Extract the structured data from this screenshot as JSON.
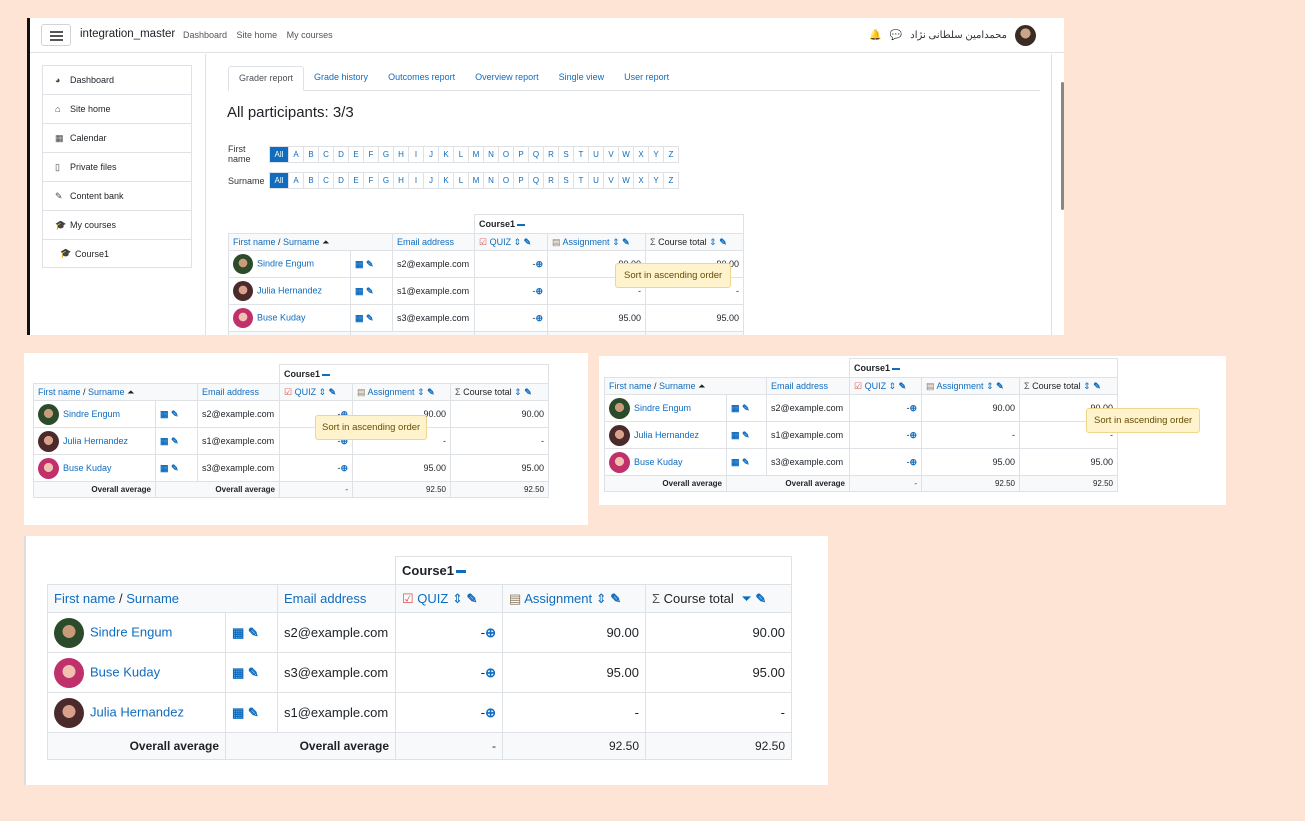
{
  "navbar": {
    "brand": "integration_master",
    "links": [
      "Dashboard",
      "Site home",
      "My courses"
    ],
    "user_name": "محمدامین سلطانی نژاد",
    "icons": [
      "bell-icon",
      "chat-icon"
    ]
  },
  "sidebar": {
    "items": [
      {
        "label": "Dashboard",
        "icon": "dashboard-icon",
        "glyph": "◕"
      },
      {
        "label": "Site home",
        "icon": "home-icon",
        "glyph": "⌂"
      },
      {
        "label": "Calendar",
        "icon": "calendar-icon",
        "glyph": "▦"
      },
      {
        "label": "Private files",
        "icon": "file-icon",
        "glyph": "▯"
      },
      {
        "label": "Content bank",
        "icon": "brush-icon",
        "glyph": "✎"
      },
      {
        "label": "My courses",
        "icon": "graduation-cap-icon",
        "glyph": "🎓"
      },
      {
        "label": "Course1",
        "icon": "graduation-cap-icon",
        "glyph": "🎓"
      }
    ]
  },
  "tabs": [
    "Grader report",
    "Grade history",
    "Outcomes report",
    "Overview report",
    "Single view",
    "User report"
  ],
  "page_title": "All participants: 3/3",
  "filters": {
    "first_name_label": "First name",
    "surname_label": "Surname",
    "all": "All",
    "letters": [
      "A",
      "B",
      "C",
      "D",
      "E",
      "F",
      "G",
      "H",
      "I",
      "J",
      "K",
      "L",
      "M",
      "N",
      "O",
      "P",
      "Q",
      "R",
      "S",
      "T",
      "U",
      "V",
      "W",
      "X",
      "Y",
      "Z"
    ]
  },
  "grader": {
    "course": "Course1",
    "col_first_name": "First name",
    "col_sep": " / ",
    "col_surname": "Surname",
    "col_email": "Email address",
    "col_quiz": "QUIZ",
    "col_assignment": "Assignment",
    "col_total": "Course total",
    "overall": "Overall average",
    "tooltip": "Sort in ascending order",
    "rows_main": [
      {
        "name": "Sindre Engum",
        "email": "s2@example.com",
        "quiz": "-",
        "assignment": "90.00",
        "total": "90.00",
        "avatar": "av1"
      },
      {
        "name": "Julia Hernandez",
        "email": "s1@example.com",
        "quiz": "-",
        "assignment": "-",
        "total": "-",
        "avatar": "av2"
      },
      {
        "name": "Buse Kuday",
        "email": "s3@example.com",
        "quiz": "-",
        "assignment": "95.00",
        "total": "95.00",
        "avatar": "av3"
      }
    ],
    "rows_sorted": [
      {
        "name": "Sindre Engum",
        "email": "s2@example.com",
        "quiz": "-",
        "assignment": "90.00",
        "total": "90.00",
        "avatar": "av1"
      },
      {
        "name": "Buse Kuday",
        "email": "s3@example.com",
        "quiz": "-",
        "assignment": "95.00",
        "total": "95.00",
        "avatar": "av3"
      },
      {
        "name": "Julia Hernandez",
        "email": "s1@example.com",
        "quiz": "-",
        "assignment": "-",
        "total": "-",
        "avatar": "av2"
      }
    ],
    "avg": {
      "quiz": "-",
      "assignment": "92.50",
      "total": "92.50"
    }
  }
}
